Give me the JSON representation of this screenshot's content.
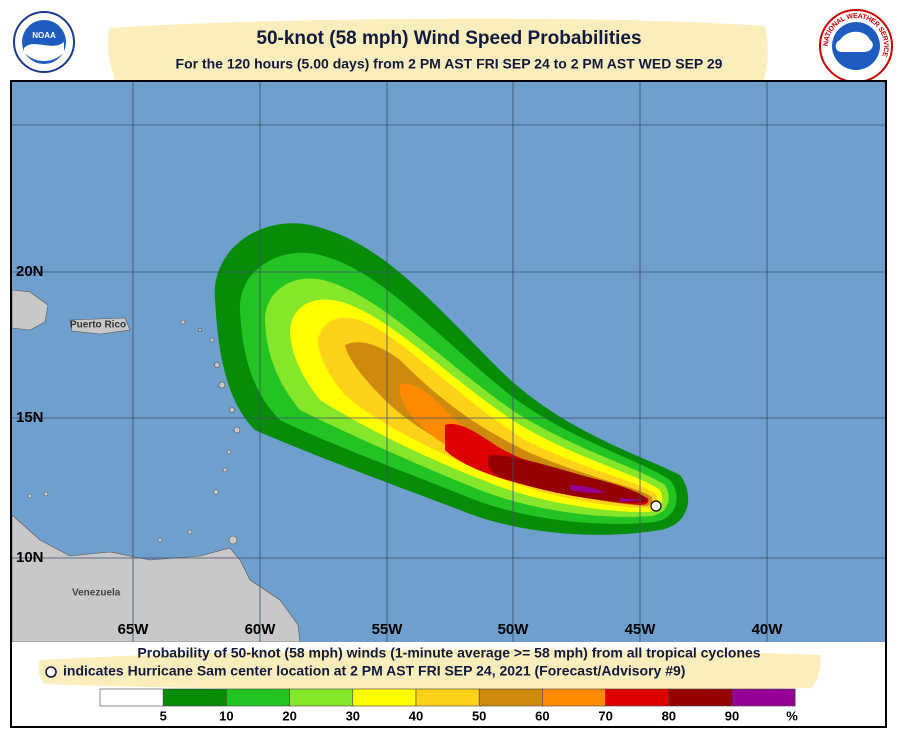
{
  "header": {
    "title": "50-knot (58 mph) Wind Speed Probabilities",
    "subtitle": "For the 120 hours (5.00 days) from 2 PM AST FRI SEP 24 to 2 PM AST WED SEP 29",
    "left_logo": "NOAA",
    "right_logo": "NATIONAL WEATHER SERVICE"
  },
  "map": {
    "longitude_labels": [
      "65W",
      "60W",
      "55W",
      "50W",
      "45W",
      "40W"
    ],
    "latitude_labels": [
      "20N",
      "15N",
      "10N"
    ],
    "place_labels": [
      "Puerto Rico",
      "Venezuela"
    ]
  },
  "footer": {
    "description": "Probability of 50-knot (58 mph) winds (1-minute average >= 58 mph) from all tropical cyclones",
    "marker_note": "indicates Hurricane Sam center location at 2 PM AST FRI SEP 24, 2021 (Forecast/Advisory #9)"
  },
  "legend": {
    "colors": [
      "#ffffff",
      "#078c07",
      "#22c322",
      "#86e62a",
      "#ffff00",
      "#ffd21a",
      "#cf8a0e",
      "#ff8a00",
      "#dd0000",
      "#960000",
      "#930093"
    ],
    "labels": [
      "5",
      "10",
      "20",
      "30",
      "40",
      "50",
      "60",
      "70",
      "80",
      "90"
    ],
    "unit": "%"
  }
}
